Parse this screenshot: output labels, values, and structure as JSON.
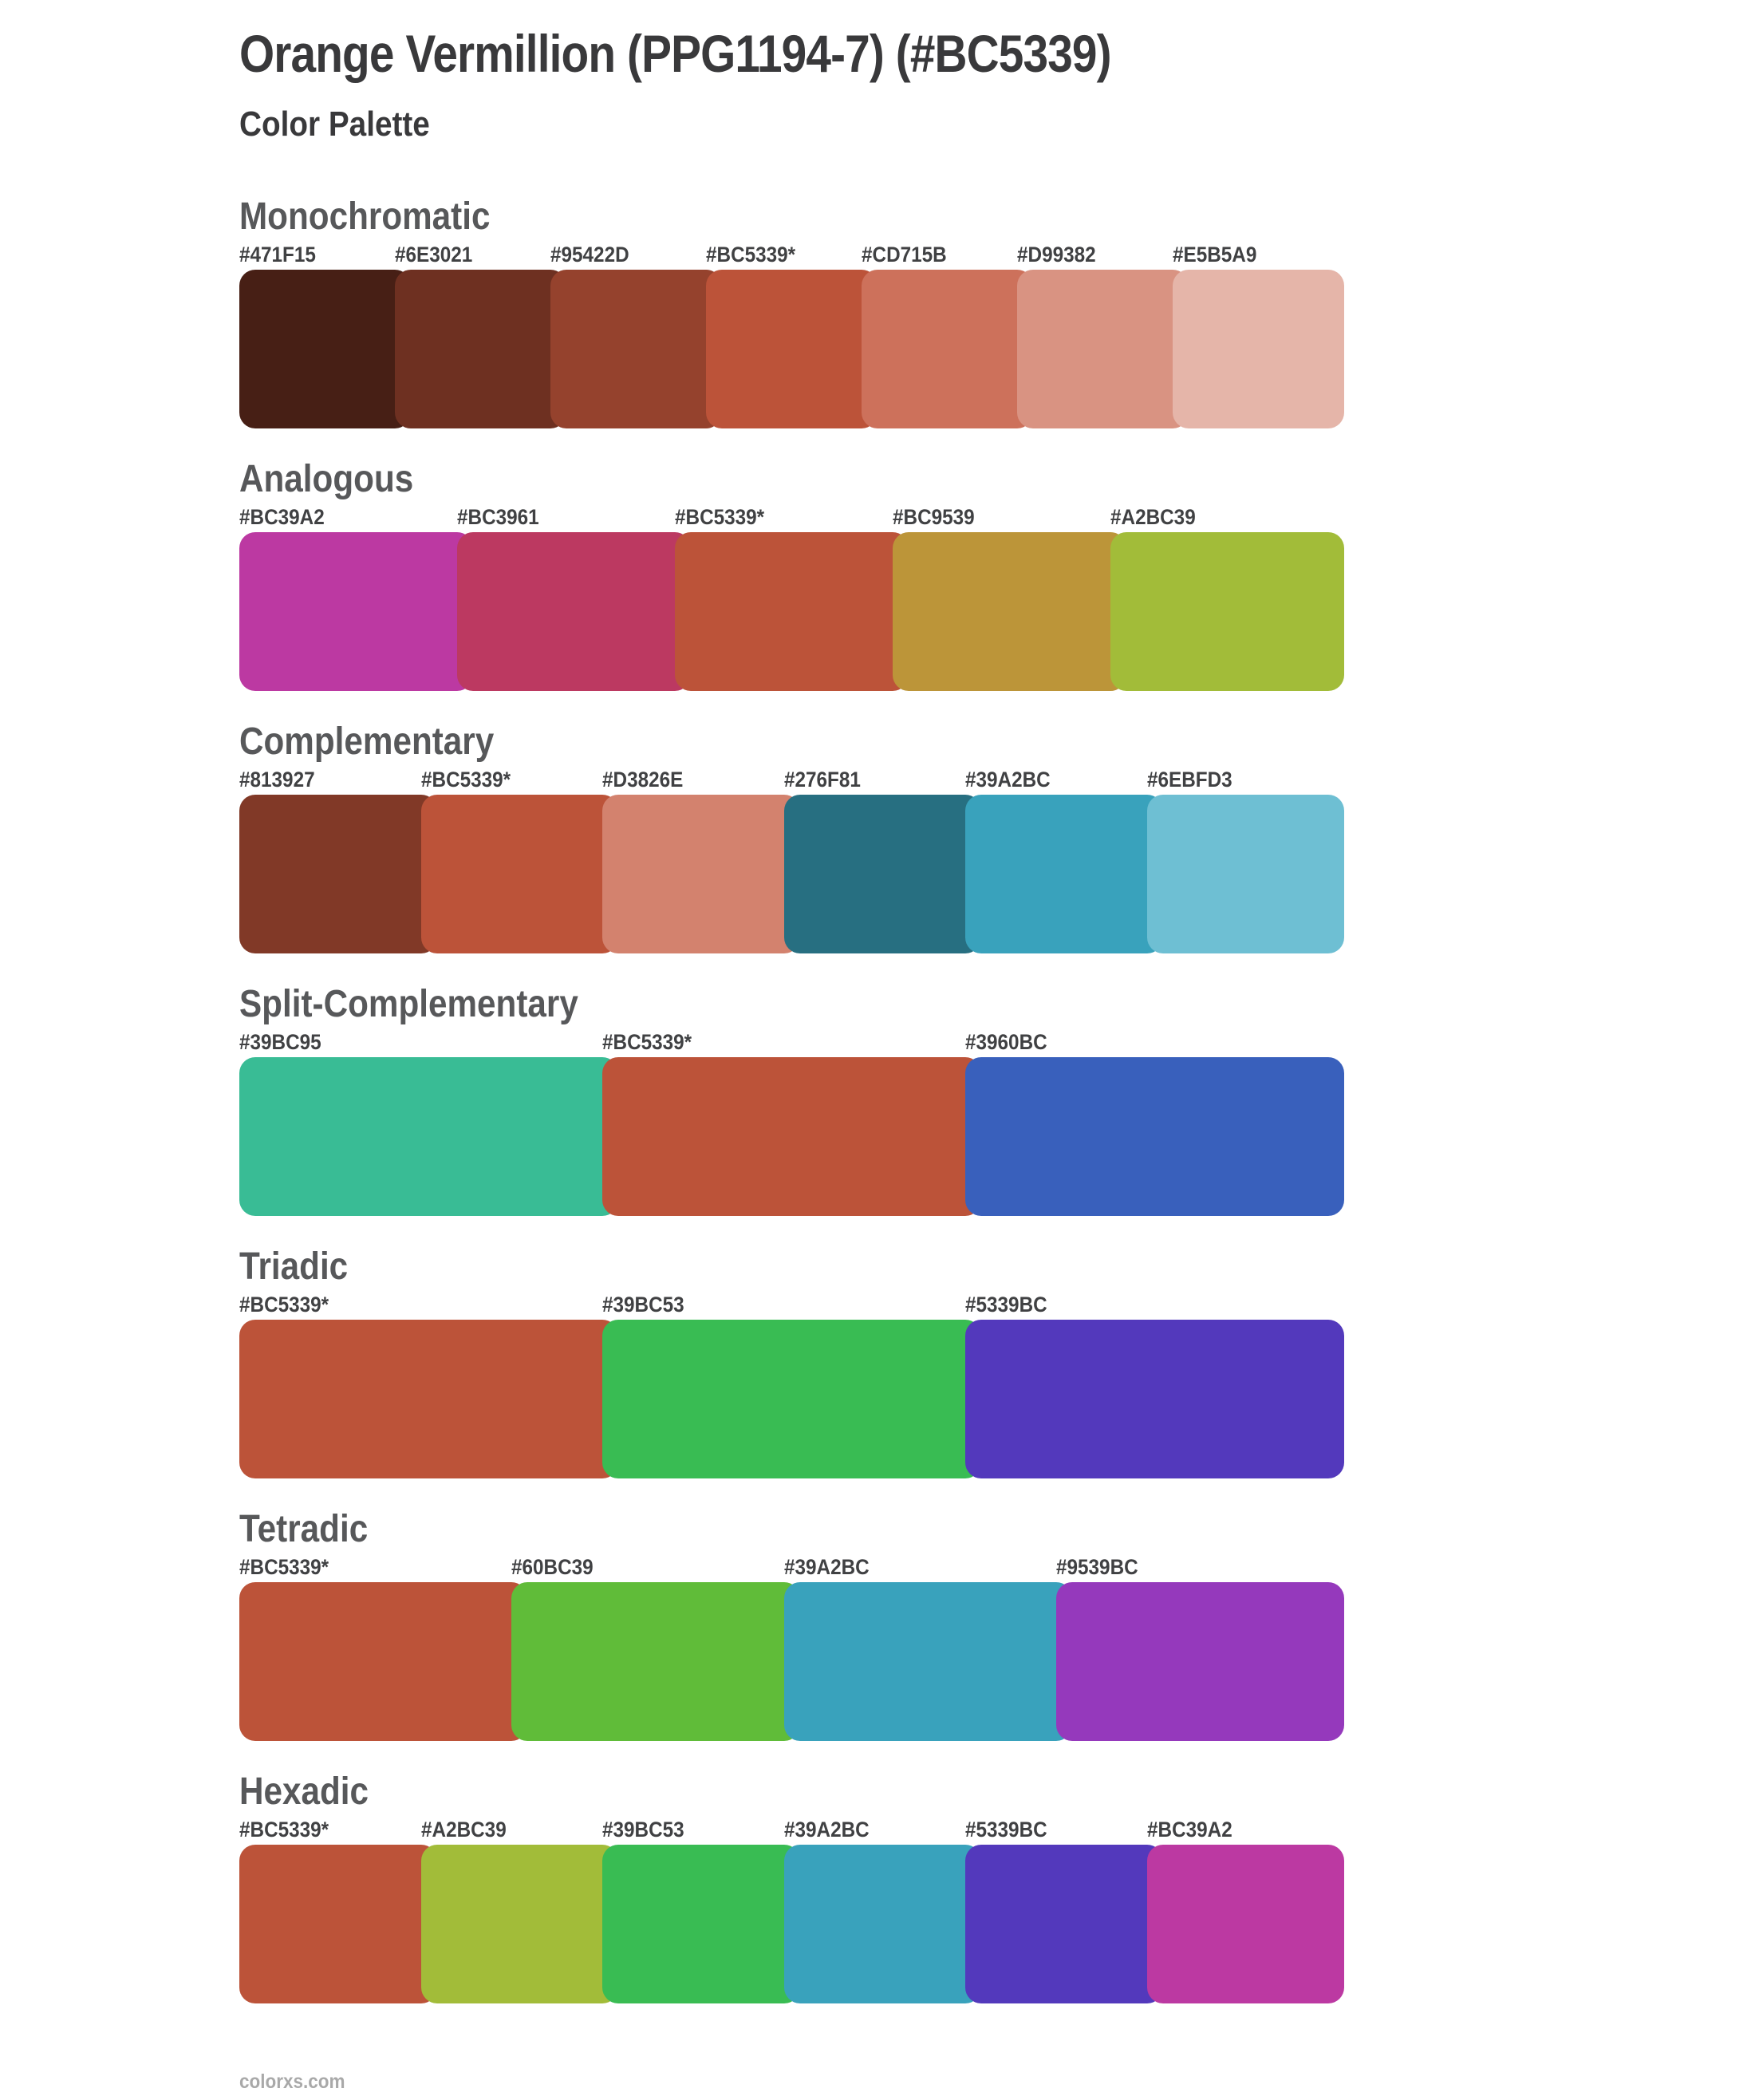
{
  "page": {
    "title": "Orange Vermillion (PPG1194-7) (#BC5339)",
    "subtitle": "Color Palette",
    "footer": "colorxs.com"
  },
  "theme": {
    "title_text": "#39393b",
    "heading_text": "#57585a",
    "label_text": "#404143",
    "footer_text": "#a9a9a9",
    "background": "#ffffff",
    "base_color": "#BC5339"
  },
  "sections": [
    {
      "name": "Monochromatic",
      "swatches": [
        {
          "label": "#471F15",
          "hex": "#471F15"
        },
        {
          "label": "#6E3021",
          "hex": "#6E3021"
        },
        {
          "label": "#95422D",
          "hex": "#95422D"
        },
        {
          "label": "#BC5339*",
          "hex": "#BC5339"
        },
        {
          "label": "#CD715B",
          "hex": "#CD715B"
        },
        {
          "label": "#D99382",
          "hex": "#D99382"
        },
        {
          "label": "#E5B5A9",
          "hex": "#E5B5A9"
        }
      ]
    },
    {
      "name": "Analogous",
      "swatches": [
        {
          "label": "#BC39A2",
          "hex": "#BC39A2"
        },
        {
          "label": "#BC3961",
          "hex": "#BC3961"
        },
        {
          "label": "#BC5339*",
          "hex": "#BC5339"
        },
        {
          "label": "#BC9539",
          "hex": "#BC9539"
        },
        {
          "label": "#A2BC39",
          "hex": "#A2BC39"
        }
      ]
    },
    {
      "name": "Complementary",
      "swatches": [
        {
          "label": "#813927",
          "hex": "#813927"
        },
        {
          "label": "#BC5339*",
          "hex": "#BC5339"
        },
        {
          "label": "#D3826E",
          "hex": "#D3826E"
        },
        {
          "label": "#276F81",
          "hex": "#276F81"
        },
        {
          "label": "#39A2BC",
          "hex": "#39A2BC"
        },
        {
          "label": "#6EBFD3",
          "hex": "#6EBFD3"
        }
      ]
    },
    {
      "name": "Split-Complementary",
      "swatches": [
        {
          "label": "#39BC95",
          "hex": "#39BC95"
        },
        {
          "label": "#BC5339*",
          "hex": "#BC5339"
        },
        {
          "label": "#3960BC",
          "hex": "#3960BC"
        }
      ]
    },
    {
      "name": "Triadic",
      "swatches": [
        {
          "label": "#BC5339*",
          "hex": "#BC5339"
        },
        {
          "label": "#39BC53",
          "hex": "#39BC53"
        },
        {
          "label": "#5339BC",
          "hex": "#5339BC"
        }
      ]
    },
    {
      "name": "Tetradic",
      "swatches": [
        {
          "label": "#BC5339*",
          "hex": "#BC5339"
        },
        {
          "label": "#60BC39",
          "hex": "#60BC39"
        },
        {
          "label": "#39A2BC",
          "hex": "#39A2BC"
        },
        {
          "label": "#9539BC",
          "hex": "#9539BC"
        }
      ]
    },
    {
      "name": "Hexadic",
      "swatches": [
        {
          "label": "#BC5339*",
          "hex": "#BC5339"
        },
        {
          "label": "#A2BC39",
          "hex": "#A2BC39"
        },
        {
          "label": "#39BC53",
          "hex": "#39BC53"
        },
        {
          "label": "#39A2BC",
          "hex": "#39A2BC"
        },
        {
          "label": "#5339BC",
          "hex": "#5339BC"
        },
        {
          "label": "#BC39A2",
          "hex": "#BC39A2"
        }
      ]
    }
  ]
}
